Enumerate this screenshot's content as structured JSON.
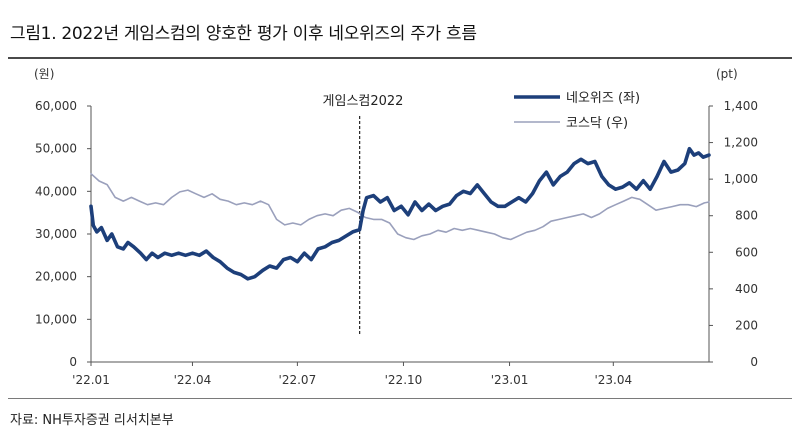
{
  "figure": {
    "title": "그림1. 2022년 게임스컴의 양호한 평가 이후 네오위즈의 주가 흐름",
    "source": "자료: NH투자증권 리서치본부"
  },
  "chart_data": {
    "type": "line",
    "left_axis": {
      "unit_label": "(원)",
      "ylim": [
        0,
        60000
      ],
      "ticks": [
        "0",
        "10,000",
        "20,000",
        "30,000",
        "40,000",
        "50,000",
        "60,000"
      ]
    },
    "right_axis": {
      "unit_label": "(pt)",
      "ylim": [
        0,
        1400
      ],
      "ticks": [
        "0",
        "200",
        "400",
        "600",
        "800",
        "1,000",
        "1,200",
        "1,400"
      ]
    },
    "x_ticks": [
      "'22.01",
      "'22.04",
      "'22.07",
      "'22.10",
      "'23.01",
      "'23.04"
    ],
    "x_range": [
      "2022-01-03",
      "2023-06-23"
    ],
    "legend_position": "top-right",
    "grid": false,
    "annotation": {
      "label": "게임스컴2022",
      "date": "2022-08-24"
    },
    "series": [
      {
        "name": "네오위즈 (좌)",
        "axis": "left",
        "color": "#1d3f7a",
        "points": [
          [
            "2022-01-03",
            36500
          ],
          [
            "2022-01-05",
            32000
          ],
          [
            "2022-01-08",
            30500
          ],
          [
            "2022-01-12",
            31500
          ],
          [
            "2022-01-17",
            28500
          ],
          [
            "2022-01-21",
            30000
          ],
          [
            "2022-01-26",
            27000
          ],
          [
            "2022-01-31",
            26500
          ],
          [
            "2022-02-04",
            28000
          ],
          [
            "2022-02-09",
            27000
          ],
          [
            "2022-02-15",
            25500
          ],
          [
            "2022-02-20",
            24000
          ],
          [
            "2022-02-25",
            25500
          ],
          [
            "2022-03-02",
            24500
          ],
          [
            "2022-03-08",
            25500
          ],
          [
            "2022-03-14",
            25000
          ],
          [
            "2022-03-20",
            25500
          ],
          [
            "2022-03-26",
            25000
          ],
          [
            "2022-04-01",
            25500
          ],
          [
            "2022-04-07",
            25000
          ],
          [
            "2022-04-13",
            26000
          ],
          [
            "2022-04-19",
            24500
          ],
          [
            "2022-04-25",
            23500
          ],
          [
            "2022-05-01",
            22000
          ],
          [
            "2022-05-07",
            21000
          ],
          [
            "2022-05-13",
            20500
          ],
          [
            "2022-05-19",
            19500
          ],
          [
            "2022-05-25",
            20000
          ],
          [
            "2022-06-01",
            21500
          ],
          [
            "2022-06-07",
            22500
          ],
          [
            "2022-06-13",
            22000
          ],
          [
            "2022-06-19",
            24000
          ],
          [
            "2022-06-25",
            24500
          ],
          [
            "2022-07-01",
            23500
          ],
          [
            "2022-07-07",
            25500
          ],
          [
            "2022-07-13",
            24000
          ],
          [
            "2022-07-19",
            26500
          ],
          [
            "2022-07-25",
            27000
          ],
          [
            "2022-07-31",
            28000
          ],
          [
            "2022-08-06",
            28500
          ],
          [
            "2022-08-12",
            29500
          ],
          [
            "2022-08-18",
            30500
          ],
          [
            "2022-08-24",
            31000
          ],
          [
            "2022-08-27",
            35500
          ],
          [
            "2022-08-30",
            38500
          ],
          [
            "2022-09-05",
            39000
          ],
          [
            "2022-09-11",
            37500
          ],
          [
            "2022-09-17",
            38500
          ],
          [
            "2022-09-23",
            35500
          ],
          [
            "2022-09-29",
            36500
          ],
          [
            "2022-10-05",
            34500
          ],
          [
            "2022-10-11",
            37500
          ],
          [
            "2022-10-17",
            35500
          ],
          [
            "2022-10-23",
            37000
          ],
          [
            "2022-10-29",
            35500
          ],
          [
            "2022-11-04",
            36500
          ],
          [
            "2022-11-10",
            37000
          ],
          [
            "2022-11-16",
            39000
          ],
          [
            "2022-11-22",
            40000
          ],
          [
            "2022-11-28",
            39500
          ],
          [
            "2022-12-04",
            41500
          ],
          [
            "2022-12-10",
            39500
          ],
          [
            "2022-12-16",
            37500
          ],
          [
            "2022-12-22",
            36500
          ],
          [
            "2022-12-28",
            36500
          ],
          [
            "2023-01-03",
            37500
          ],
          [
            "2023-01-09",
            38500
          ],
          [
            "2023-01-15",
            37500
          ],
          [
            "2023-01-21",
            39500
          ],
          [
            "2023-01-27",
            42500
          ],
          [
            "2023-02-02",
            44500
          ],
          [
            "2023-02-08",
            41500
          ],
          [
            "2023-02-14",
            43500
          ],
          [
            "2023-02-20",
            44500
          ],
          [
            "2023-02-26",
            46500
          ],
          [
            "2023-03-04",
            47500
          ],
          [
            "2023-03-10",
            46500
          ],
          [
            "2023-03-16",
            47000
          ],
          [
            "2023-03-22",
            43500
          ],
          [
            "2023-03-28",
            41500
          ],
          [
            "2023-04-03",
            40500
          ],
          [
            "2023-04-09",
            41000
          ],
          [
            "2023-04-15",
            42000
          ],
          [
            "2023-04-21",
            40500
          ],
          [
            "2023-04-27",
            42500
          ],
          [
            "2023-05-03",
            40500
          ],
          [
            "2023-05-09",
            43500
          ],
          [
            "2023-05-15",
            47000
          ],
          [
            "2023-05-21",
            44500
          ],
          [
            "2023-05-27",
            45000
          ],
          [
            "2023-06-02",
            46500
          ],
          [
            "2023-06-06",
            50000
          ],
          [
            "2023-06-10",
            48500
          ],
          [
            "2023-06-14",
            49000
          ],
          [
            "2023-06-18",
            48000
          ],
          [
            "2023-06-23",
            48500
          ]
        ]
      },
      {
        "name": "코스닥 (우)",
        "axis": "right",
        "color": "#9aa0bc",
        "points": [
          [
            "2022-01-03",
            1030
          ],
          [
            "2022-01-10",
            990
          ],
          [
            "2022-01-17",
            970
          ],
          [
            "2022-01-24",
            900
          ],
          [
            "2022-01-31",
            880
          ],
          [
            "2022-02-07",
            900
          ],
          [
            "2022-02-14",
            880
          ],
          [
            "2022-02-21",
            860
          ],
          [
            "2022-02-28",
            870
          ],
          [
            "2022-03-07",
            860
          ],
          [
            "2022-03-14",
            900
          ],
          [
            "2022-03-21",
            930
          ],
          [
            "2022-03-28",
            940
          ],
          [
            "2022-04-04",
            920
          ],
          [
            "2022-04-11",
            900
          ],
          [
            "2022-04-18",
            920
          ],
          [
            "2022-04-25",
            890
          ],
          [
            "2022-05-02",
            880
          ],
          [
            "2022-05-09",
            860
          ],
          [
            "2022-05-16",
            870
          ],
          [
            "2022-05-23",
            860
          ],
          [
            "2022-05-30",
            880
          ],
          [
            "2022-06-06",
            860
          ],
          [
            "2022-06-13",
            780
          ],
          [
            "2022-06-20",
            750
          ],
          [
            "2022-06-27",
            760
          ],
          [
            "2022-07-04",
            750
          ],
          [
            "2022-07-11",
            780
          ],
          [
            "2022-07-18",
            800
          ],
          [
            "2022-07-25",
            810
          ],
          [
            "2022-08-01",
            800
          ],
          [
            "2022-08-08",
            830
          ],
          [
            "2022-08-15",
            840
          ],
          [
            "2022-08-22",
            820
          ],
          [
            "2022-08-29",
            790
          ],
          [
            "2022-09-05",
            780
          ],
          [
            "2022-09-12",
            780
          ],
          [
            "2022-09-19",
            760
          ],
          [
            "2022-09-26",
            700
          ],
          [
            "2022-10-03",
            680
          ],
          [
            "2022-10-10",
            670
          ],
          [
            "2022-10-17",
            690
          ],
          [
            "2022-10-24",
            700
          ],
          [
            "2022-10-31",
            720
          ],
          [
            "2022-11-07",
            710
          ],
          [
            "2022-11-14",
            730
          ],
          [
            "2022-11-21",
            720
          ],
          [
            "2022-11-28",
            730
          ],
          [
            "2022-12-05",
            720
          ],
          [
            "2022-12-12",
            710
          ],
          [
            "2022-12-19",
            700
          ],
          [
            "2022-12-26",
            680
          ],
          [
            "2023-01-02",
            670
          ],
          [
            "2023-01-09",
            690
          ],
          [
            "2023-01-16",
            710
          ],
          [
            "2023-01-23",
            720
          ],
          [
            "2023-01-30",
            740
          ],
          [
            "2023-02-06",
            770
          ],
          [
            "2023-02-13",
            780
          ],
          [
            "2023-02-20",
            790
          ],
          [
            "2023-02-27",
            800
          ],
          [
            "2023-03-06",
            810
          ],
          [
            "2023-03-13",
            790
          ],
          [
            "2023-03-20",
            810
          ],
          [
            "2023-03-27",
            840
          ],
          [
            "2023-04-03",
            860
          ],
          [
            "2023-04-10",
            880
          ],
          [
            "2023-04-17",
            900
          ],
          [
            "2023-04-24",
            890
          ],
          [
            "2023-05-01",
            860
          ],
          [
            "2023-05-08",
            830
          ],
          [
            "2023-05-15",
            840
          ],
          [
            "2023-05-22",
            850
          ],
          [
            "2023-05-29",
            860
          ],
          [
            "2023-06-05",
            860
          ],
          [
            "2023-06-12",
            850
          ],
          [
            "2023-06-19",
            870
          ],
          [
            "2023-06-23",
            875
          ]
        ]
      }
    ]
  }
}
